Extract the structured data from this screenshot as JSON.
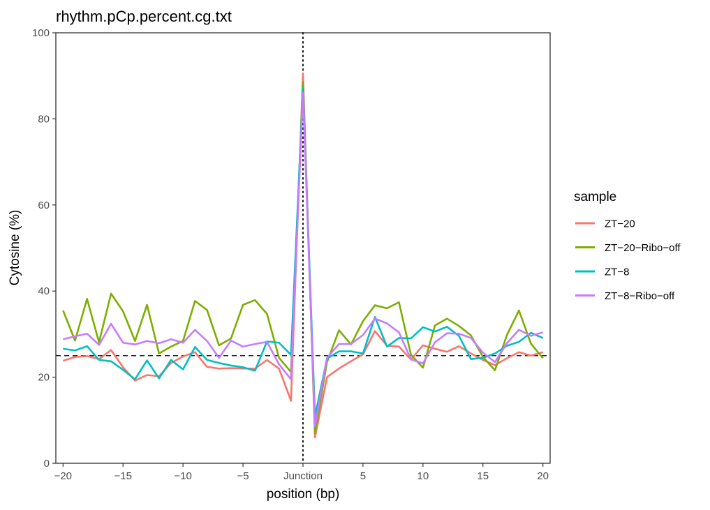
{
  "chart_data": {
    "type": "line",
    "title": "rhythm.pCp.percent.cg.txt",
    "xlabel": "position (bp)",
    "ylabel": "Cytosine (%)",
    "xlim": [
      -20.6,
      20.6
    ],
    "ylim": [
      0,
      100
    ],
    "x_ticks": [
      -20,
      -15,
      -10,
      -5,
      0,
      5,
      10,
      15,
      20
    ],
    "x_tick_labels": [
      "−20",
      "−15",
      "−10",
      "−5",
      "Junction",
      "5",
      "10",
      "15",
      "20"
    ],
    "y_ticks": [
      0,
      20,
      40,
      60,
      80,
      100
    ],
    "y_tick_labels": [
      "0",
      "20",
      "40",
      "60",
      "80",
      "100"
    ],
    "reference_lines": {
      "horizontal_dashed_y": 25,
      "vertical_dotted_x": 0
    },
    "legend": {
      "title": "sample",
      "position": "right"
    },
    "grid": false,
    "x": [
      -20,
      -19,
      -18,
      -17,
      -16,
      -15,
      -14,
      -13,
      -12,
      -11,
      -10,
      -9,
      -8,
      -7,
      -6,
      -5,
      -4,
      -3,
      -2,
      -1,
      0,
      1,
      2,
      3,
      4,
      5,
      6,
      7,
      8,
      9,
      10,
      11,
      12,
      13,
      14,
      15,
      16,
      17,
      18,
      19,
      20
    ],
    "series": [
      {
        "name": "ZT−20",
        "color": "#F8766D",
        "values": [
          23.8,
          24.7,
          24.9,
          24.2,
          26.3,
          22.3,
          19.2,
          20.5,
          20.2,
          23.3,
          24.8,
          25.8,
          22.4,
          22.0,
          22.1,
          22.0,
          22.0,
          24.0,
          22.0,
          14.5,
          90.6,
          6.0,
          20.0,
          22.0,
          23.7,
          25.3,
          30.7,
          27.3,
          27.1,
          24.1,
          27.4,
          26.6,
          25.9,
          27.2,
          25.5,
          24.0,
          22.8,
          24.4,
          25.8,
          25.0,
          25.8
        ]
      },
      {
        "name": "ZT−20−Ribo−off",
        "color": "#7CAE00",
        "values": [
          35.5,
          28.5,
          38.2,
          28.1,
          39.4,
          35.3,
          28.4,
          36.8,
          25.5,
          27.1,
          28.4,
          37.7,
          35.6,
          27.4,
          29.0,
          36.8,
          37.9,
          34.7,
          24.5,
          21.2,
          88.6,
          7.0,
          23.5,
          30.9,
          27.6,
          33.0,
          36.7,
          36.0,
          37.4,
          25.2,
          22.2,
          32.0,
          33.6,
          31.9,
          29.7,
          24.7,
          21.6,
          29.8,
          35.5,
          27.8,
          24.4
        ]
      },
      {
        "name": "ZT−8",
        "color": "#00BFC4",
        "values": [
          26.6,
          26.2,
          27.2,
          24.0,
          23.7,
          21.7,
          19.5,
          23.9,
          19.7,
          24.0,
          21.8,
          27.0,
          24.0,
          23.3,
          22.7,
          22.3,
          21.5,
          28.3,
          28.0,
          25.2,
          87.0,
          10.9,
          24.3,
          26.0,
          26.0,
          25.5,
          34.0,
          27.1,
          29.1,
          29.0,
          31.6,
          30.6,
          31.7,
          29.6,
          24.2,
          24.5,
          25.5,
          27.3,
          28.2,
          30.3,
          29.1
        ]
      },
      {
        "name": "ZT−8−Ribo−off",
        "color": "#C77CFF",
        "values": [
          28.8,
          29.5,
          30.1,
          27.5,
          32.4,
          28.0,
          27.6,
          28.4,
          27.9,
          28.8,
          28.0,
          31.0,
          28.4,
          24.5,
          28.5,
          27.1,
          27.7,
          28.2,
          23.0,
          19.5,
          86.1,
          8.5,
          24.5,
          27.7,
          27.7,
          29.8,
          33.6,
          32.5,
          30.4,
          24.1,
          23.2,
          28.1,
          30.2,
          30.1,
          29.1,
          25.7,
          23.5,
          27.9,
          31.0,
          29.6,
          30.4
        ]
      }
    ]
  }
}
